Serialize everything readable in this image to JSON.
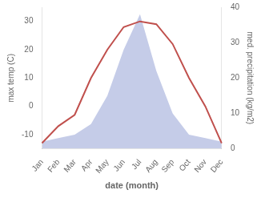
{
  "chart_data": {
    "type": "line",
    "xlabel": "date (month)",
    "ylabel": "max temp (C)",
    "y2label": "med. precipitation (kg/m2)",
    "categories": [
      "Jan",
      "Feb",
      "Mar",
      "Apr",
      "May",
      "Jun",
      "Jul",
      "Aug",
      "Sep",
      "Oct",
      "Nov",
      "Dec"
    ],
    "series": [
      {
        "type": "area",
        "axis": "y2",
        "color": "#c5cce8",
        "values": [
          2,
          3,
          4,
          7,
          15,
          28,
          38,
          22,
          10,
          4,
          3,
          2
        ]
      },
      {
        "type": "line",
        "color": "#c0504d",
        "values": [
          -13,
          -7,
          -3,
          10,
          20,
          28,
          30,
          29,
          22,
          10,
          0,
          -13
        ]
      }
    ],
    "ylim": [
      -15,
      35
    ],
    "yticks": [
      -10,
      0,
      10,
      20,
      30
    ],
    "y2lim": [
      0,
      40
    ],
    "y2ticks": [
      0,
      10,
      20,
      30,
      40
    ],
    "grid": false
  }
}
